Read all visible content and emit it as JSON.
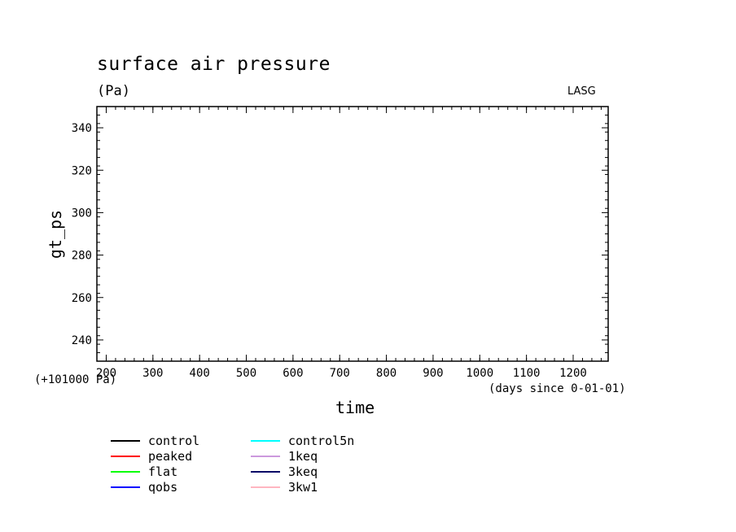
{
  "chart_data": {
    "type": "line",
    "title": "surface air pressure",
    "subtitle": "(Pa)",
    "source_label": "LASG",
    "xlabel": "time",
    "x_units": "(days since 0-01-01)",
    "ylabel": "gt_ps",
    "y_offset_label": "(+101000 Pa)",
    "xlim": [
      180,
      1275
    ],
    "ylim": [
      230,
      350
    ],
    "x_ticks": [
      200,
      300,
      400,
      500,
      600,
      700,
      800,
      900,
      1000,
      1100,
      1200
    ],
    "y_ticks": [
      240,
      260,
      280,
      300,
      320,
      340
    ],
    "grid": false,
    "legend_position": "bottom-left",
    "series": [
      {
        "name": "control",
        "color": "#000000",
        "x": [],
        "y": []
      },
      {
        "name": "peaked",
        "color": "#ff0000",
        "x": [],
        "y": []
      },
      {
        "name": "flat",
        "color": "#00ff00",
        "x": [],
        "y": []
      },
      {
        "name": "qobs",
        "color": "#0000ff",
        "x": [],
        "y": []
      },
      {
        "name": "control5n",
        "color": "#00ffff",
        "x": [],
        "y": []
      },
      {
        "name": "1keq",
        "color": "#cc99dd",
        "x": [],
        "y": []
      },
      {
        "name": "3keq",
        "color": "#000066",
        "x": [],
        "y": []
      },
      {
        "name": "3kw1",
        "color": "#ffb6c1",
        "x": [],
        "y": []
      }
    ]
  }
}
